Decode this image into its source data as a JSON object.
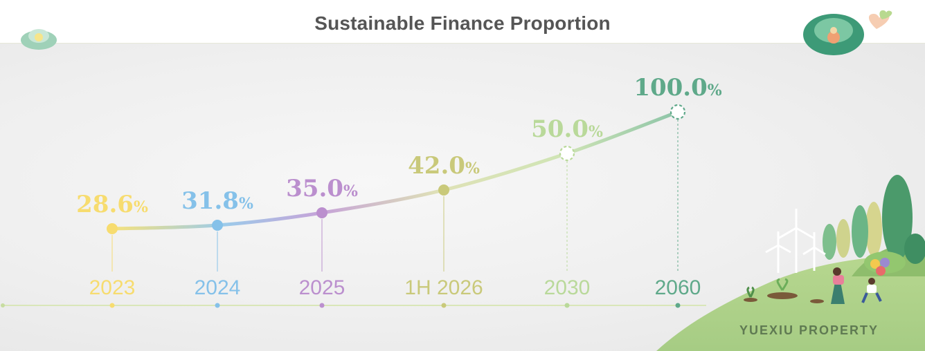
{
  "title": "Sustainable Finance Proportion",
  "brand": "YUEXIU PROPERTY",
  "chart_data": {
    "type": "line",
    "title": "Sustainable Finance Proportion",
    "categories": [
      "2023",
      "2024",
      "2025",
      "1H 2026",
      "2030",
      "2060"
    ],
    "series": [
      {
        "values": [
          28.6,
          31.8,
          35.0,
          42.0,
          50.0,
          100.0
        ]
      }
    ],
    "value_labels": [
      "28.6",
      "31.8",
      "35.0",
      "42.0",
      "50.0",
      "100.0"
    ],
    "unit": "%",
    "point_styles": [
      "actual",
      "actual",
      "actual",
      "actual",
      "target",
      "target"
    ],
    "colors": [
      "#f7dc6f",
      "#85c1e9",
      "#bb8fce",
      "#c9c97a",
      "#b9d99a",
      "#5fa98a"
    ],
    "xlabel": "",
    "ylabel": "",
    "grid": false,
    "legend": "none"
  }
}
